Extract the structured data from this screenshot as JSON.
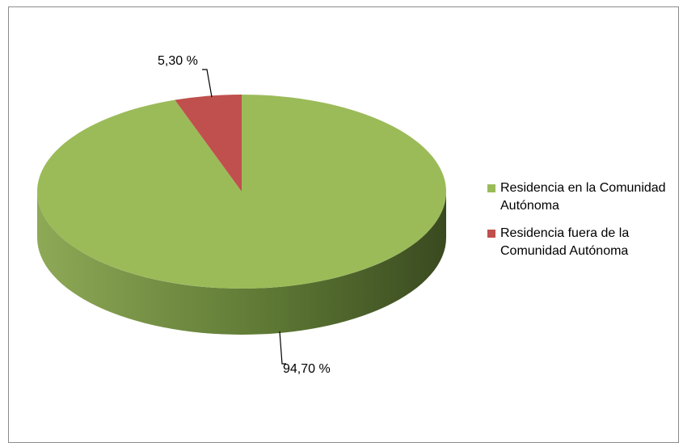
{
  "chart_data": {
    "type": "pie",
    "title": "",
    "categories": [
      "Residencia en la Comunidad Autónoma",
      "Residencia fuera de la Comunidad Autónoma"
    ],
    "values": [
      94.7,
      5.3
    ],
    "data_labels": [
      "94,70 %",
      "5,30 %"
    ],
    "colors": [
      "#9bbb59",
      "#c0504d"
    ],
    "legend_position": "right",
    "style": "3d-pie"
  }
}
